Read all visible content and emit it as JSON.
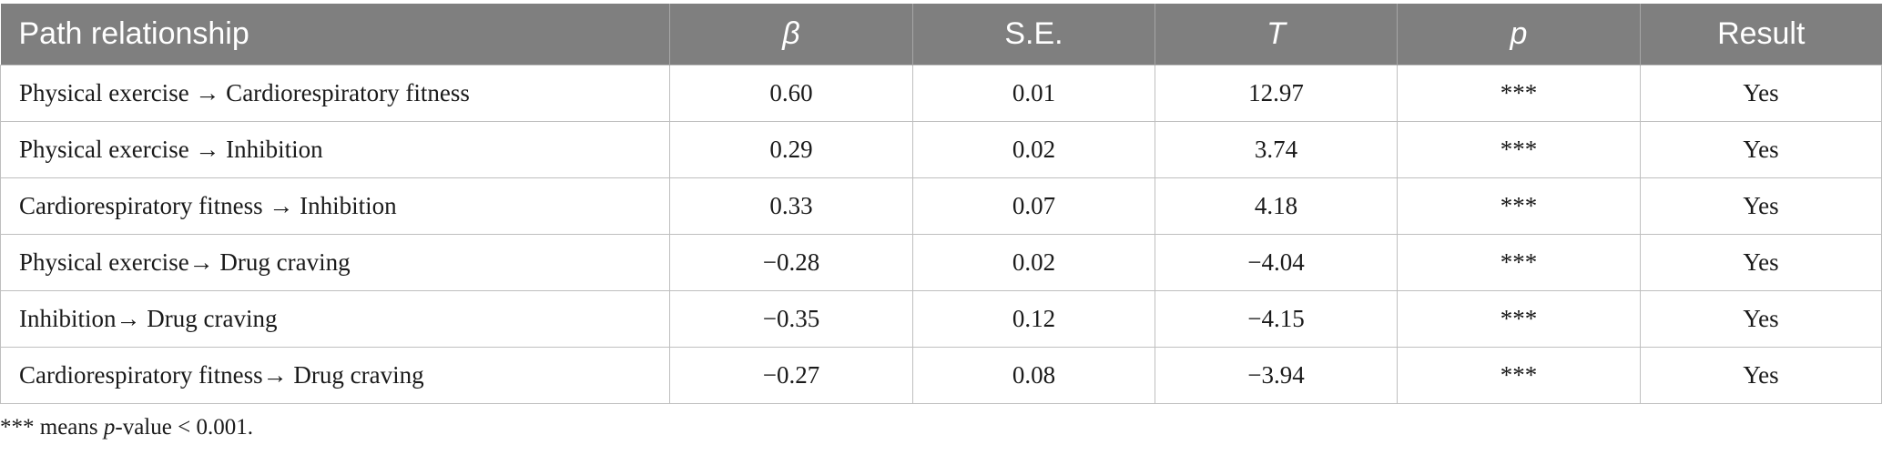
{
  "table": {
    "headers": [
      "Path relationship",
      "β",
      "S.E.",
      "T",
      "p",
      "Result"
    ],
    "rows": [
      {
        "path": "Physical exercise → Cardiorespiratory fitness",
        "beta": "0.60",
        "se": "0.01",
        "t": "12.97",
        "p": "***",
        "result": "Yes"
      },
      {
        "path": "Physical exercise → Inhibition",
        "beta": "0.29",
        "se": "0.02",
        "t": "3.74",
        "p": "***",
        "result": "Yes"
      },
      {
        "path": "Cardiorespiratory fitness → Inhibition",
        "beta": "0.33",
        "se": "0.07",
        "t": "4.18",
        "p": "***",
        "result": "Yes"
      },
      {
        "path": "Physical exercise→ Drug craving",
        "beta": "−0.28",
        "se": "0.02",
        "t": "−4.04",
        "p": "***",
        "result": "Yes"
      },
      {
        "path": "Inhibition→ Drug craving",
        "beta": "−0.35",
        "se": "0.12",
        "t": "−4.15",
        "p": "***",
        "result": "Yes"
      },
      {
        "path": "Cardiorespiratory fitness→ Drug craving",
        "beta": "−0.27",
        "se": "0.08",
        "t": "−3.94",
        "p": "***",
        "result": "Yes"
      }
    ]
  },
  "footnote": {
    "prefix": "*** means ",
    "italic": "p",
    "suffix": "-value < 0.001."
  }
}
